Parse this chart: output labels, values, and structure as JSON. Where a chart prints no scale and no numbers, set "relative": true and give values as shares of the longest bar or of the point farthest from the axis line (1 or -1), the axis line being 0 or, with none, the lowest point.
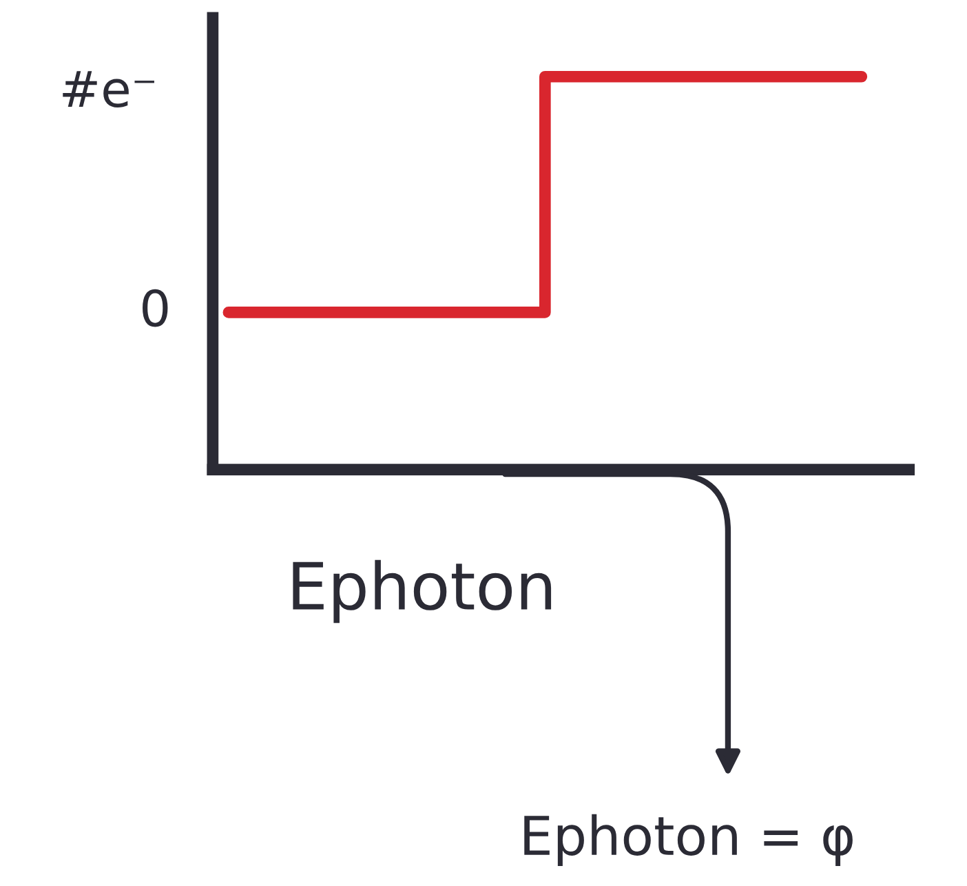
{
  "chart_data": {
    "type": "step",
    "relative": true,
    "ylabel": "#e⁻",
    "xlabel": "Ephoton",
    "categories": [
      null,
      null,
      null
    ],
    "series": [
      {
        "color": "#d9262e",
        "values": [
          0.4,
          1,
          1
        ]
      }
    ],
    "annotations": [
      "0",
      "Ephoton = φ"
    ],
    "grid": false,
    "legend": false
  }
}
